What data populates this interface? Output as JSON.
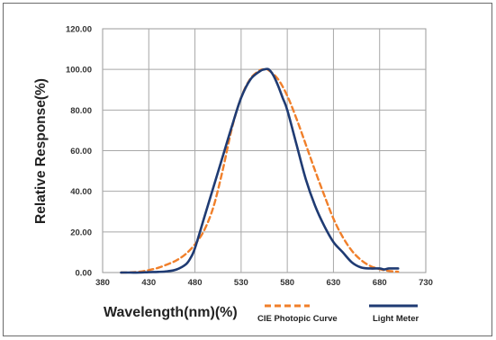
{
  "chart_data": {
    "type": "line",
    "xlabel": "Wavelength(nm)(%)",
    "ylabel": "Relative Response(%)",
    "xlim": [
      380,
      730
    ],
    "ylim": [
      0,
      120
    ],
    "x_ticks": [
      "380",
      "430",
      "480",
      "530",
      "580",
      "630",
      "680",
      "730"
    ],
    "y_ticks": [
      "0.00",
      "20.00",
      "40.00",
      "60.00",
      "80.00",
      "100.00",
      "120.00"
    ],
    "grid": true,
    "legend_position": "bottom",
    "series": [
      {
        "name": "CIE Photopic Curve",
        "color": "#f07f2a",
        "style": "dashed",
        "x": [
          400,
          410,
          420,
          430,
          440,
          450,
          460,
          470,
          480,
          490,
          500,
          510,
          520,
          530,
          540,
          550,
          555,
          560,
          570,
          580,
          590,
          600,
          610,
          620,
          630,
          640,
          650,
          660,
          670,
          680,
          690,
          700
        ],
        "y": [
          0.0,
          0.1,
          0.4,
          1.2,
          2.3,
          4.0,
          6.0,
          9.1,
          13.9,
          20.8,
          32.3,
          50.3,
          71.0,
          86.2,
          95.4,
          99.5,
          100.0,
          99.5,
          95.2,
          87.0,
          75.7,
          63.1,
          50.3,
          38.1,
          26.5,
          17.5,
          10.7,
          6.1,
          3.2,
          1.7,
          0.8,
          0.4
        ]
      },
      {
        "name": "Light Meter",
        "color": "#1f3b73",
        "style": "solid",
        "x": [
          400,
          410,
          420,
          430,
          440,
          450,
          460,
          470,
          475,
          480,
          490,
          500,
          510,
          520,
          530,
          540,
          550,
          555,
          560,
          565,
          570,
          575,
          580,
          590,
          600,
          610,
          620,
          630,
          640,
          650,
          660,
          670,
          680,
          685,
          690,
          700
        ],
        "y": [
          0.0,
          0.0,
          0.0,
          0.2,
          0.3,
          0.6,
          1.5,
          4.0,
          7.0,
          12.0,
          27.0,
          42.0,
          57.0,
          72.0,
          86.0,
          95.0,
          99.0,
          100.0,
          100.0,
          97.0,
          92.0,
          86.0,
          80.0,
          63.0,
          46.0,
          33.0,
          23.0,
          15.0,
          10.0,
          5.0,
          2.5,
          2.0,
          2.0,
          1.5,
          2.0,
          2.0
        ]
      }
    ]
  }
}
